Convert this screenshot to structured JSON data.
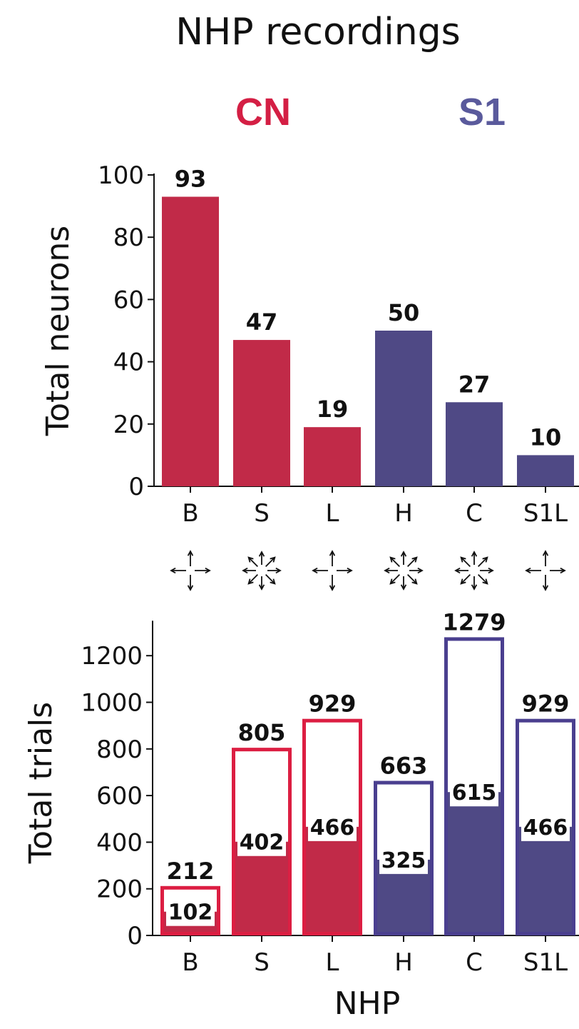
{
  "figure": {
    "title": "NHP recordings",
    "groups": [
      {
        "label": "CN",
        "color": "#d41f44"
      },
      {
        "label": "S1",
        "color": "#5a5a9c"
      }
    ],
    "colors": {
      "cn": "#c12a48",
      "s1": "#4f4985",
      "cn_outline": "#dc1e42",
      "s1_outline": "#4a3f8f"
    },
    "direction_icons": [
      "four-direction-arrows-icon",
      "eight-direction-arrows-icon",
      "four-direction-arrows-icon",
      "eight-direction-arrows-icon",
      "eight-direction-arrows-icon",
      "four-direction-arrows-icon"
    ]
  },
  "chart_data": [
    {
      "type": "bar",
      "categories": [
        "B",
        "S",
        "L",
        "H",
        "C",
        "S1L"
      ],
      "values": [
        93,
        47,
        19,
        50,
        27,
        10
      ],
      "value_labels": [
        "93",
        "47",
        "19",
        "50",
        "27",
        "10"
      ],
      "group": [
        "CN",
        "CN",
        "CN",
        "S1",
        "S1",
        "S1"
      ],
      "ylabel": "Total neurons",
      "xlabel": "",
      "ylim": [
        0,
        100
      ],
      "yticks": [
        "0",
        "20",
        "40",
        "60",
        "80",
        "100"
      ]
    },
    {
      "type": "bar",
      "categories": [
        "B",
        "S",
        "L",
        "H",
        "C",
        "S1L"
      ],
      "series": [
        {
          "values": [
            212,
            805,
            929,
            663,
            1279,
            929
          ],
          "style": "outline"
        },
        {
          "values": [
            102,
            402,
            466,
            325,
            615,
            466
          ],
          "style": "filled"
        }
      ],
      "total_labels": [
        "212",
        "805",
        "929",
        "663",
        "1279",
        "929"
      ],
      "filled_labels": [
        "102",
        "402",
        "466",
        "325",
        "615",
        "466"
      ],
      "group": [
        "CN",
        "CN",
        "CN",
        "S1",
        "S1",
        "S1"
      ],
      "ylabel": "Total trials",
      "xlabel": "NHP",
      "ylim": [
        0,
        1350
      ],
      "yticks": [
        "0",
        "200",
        "400",
        "600",
        "800",
        "1000",
        "1200"
      ]
    }
  ]
}
